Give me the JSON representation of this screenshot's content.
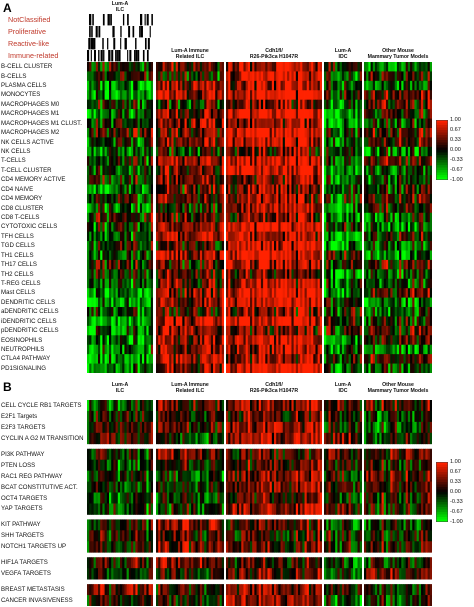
{
  "figure": {
    "panel_a": "A",
    "panel_b": "B"
  },
  "panel_a": {
    "categories": [
      "NotClassified",
      "Proliferative",
      "Reactive-like",
      "Immune-related"
    ],
    "groups": [
      {
        "l1": "Lum-A",
        "l2": "ILC",
        "seed": 11,
        "bias": -0.2
      },
      {
        "l1": "Lum-A Immune",
        "l2": "Related ILC",
        "seed": 23,
        "bias": 0.35
      },
      {
        "l1": "Cdh1fl/",
        "l2": "R26-Pik3ca H1047R",
        "seed": 37,
        "bias": 0.8
      },
      {
        "l1": "Lum-A",
        "l2": "IDC",
        "seed": 41,
        "bias": -0.35
      },
      {
        "l1": "Other Mouse",
        "l2": "Mammary Tumor Models",
        "seed": 53,
        "bias": 0.0
      }
    ],
    "rows": [
      "B-CELL CLUSTER",
      "B-CELLS",
      "PLASMA CELLS",
      "MONOCYTES",
      "MACROPHAGES M0",
      "MACROPHAGES M1",
      "MACROPHAGES M1 CLUST.",
      "MACROPHAGES M2",
      "NK CELLS ACTIVE",
      "NK CELLS",
      "T-CELLS",
      "T-CELL CLUSTER",
      "CD4 MEMORY ACTIVE",
      "CD4 NAIVE",
      "CD4 MEMORY",
      "CD8 CLUSTER",
      "CD8 T-CELLS",
      "CYTOTOXIC CELLS",
      "TFH CELLS",
      "TGD CELLS",
      "TH1 CELLS",
      "TH17 CELLS",
      "TH2 CELLS",
      "T-REG CELLS",
      "Mast CELLS",
      "DENDRITIC CELLS",
      "aDENDRITIC CELLS",
      "iDENDRITIC CELLS",
      "pDENDRITIC CELLS",
      "EOSINOPHILS",
      "NEUTROPHILS",
      "CTLA4 PATHWAY",
      "PD1SIGNALING"
    ]
  },
  "panel_b": {
    "groups": [
      {
        "l1": "Lum-A",
        "l2": "ILC",
        "seed": 71,
        "bias": 0.05
      },
      {
        "l1": "Lum-A Immune",
        "l2": "Related ILC",
        "seed": 83,
        "bias": 0.1
      },
      {
        "l1": "Cdh1fl/",
        "l2": "R26-Pik3ca H1047R",
        "seed": 97,
        "bias": 0.55
      },
      {
        "l1": "Lum-A",
        "l2": "IDC",
        "seed": 101,
        "bias": 0.0
      },
      {
        "l1": "Other Mouse",
        "l2": "Mammary Tumor Models",
        "seed": 113,
        "bias": 0.2
      }
    ],
    "blocks": [
      {
        "rows": [
          "CELL CYCLE RB1 TARGETS",
          "E2F1 Targets",
          "E2F3 TARGETS",
          "CYCLIN A G2 M TRANSITION"
        ]
      },
      {
        "rows": [
          "PI3K PATHWAY",
          "PTEN LOSS",
          "RAC1 REG PATHWAY",
          "BCAT CONSTITUTIVE ACT.",
          "OCT4 TARGETS",
          "YAP TARGETS"
        ]
      },
      {
        "rows": [
          "KIT PATHWAY",
          "SHH TARGETS",
          "NOTCH1 TARGETS UP"
        ]
      },
      {
        "rows": [
          "HIF1A TARGETS",
          "VEGFA TARGETS"
        ]
      },
      {
        "rows": [
          "BREAST METASTASIS",
          "CANCER INVASIVENESS"
        ]
      }
    ]
  },
  "legend": {
    "ticks": [
      "1.00",
      "0.67",
      "0.33",
      "0.00",
      "-0.33",
      "-0.67",
      "-1.00"
    ],
    "colors": {
      "high": "#ff2200",
      "mid": "#000000",
      "low": "#00ff00"
    }
  }
}
